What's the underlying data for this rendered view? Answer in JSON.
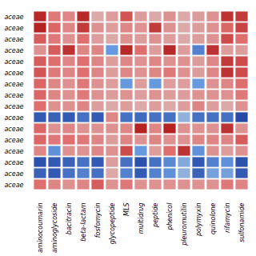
{
  "chart_data": {
    "type": "heatmap",
    "x_categories": [
      "aminocoumarin",
      "aminoglycoside",
      "bacitracin",
      "beta-lactam",
      "fosfomycin",
      "glycopeptide",
      "MLS",
      "multidrug",
      "peptide",
      "phenicol",
      "pleuromutilin",
      "polymyxin",
      "quinolone",
      "rifamycin",
      "sulfonamide"
    ],
    "y_categories": [
      "aceae",
      "aceae",
      "aceae",
      "aceae",
      "aceae",
      "aceae",
      "aceae",
      "aceae",
      "aceae",
      "aceae",
      "aceae",
      "aceae",
      "aceae",
      "aceae",
      "aceae",
      "aceae"
    ],
    "values": [
      [
        0.85,
        0.4,
        0.35,
        0.85,
        0.2,
        0.25,
        0.6,
        0.25,
        0.2,
        0.3,
        0.2,
        0.25,
        0.3,
        0.8,
        0.75
      ],
      [
        0.9,
        0.5,
        0.35,
        0.75,
        0.3,
        0.25,
        0.35,
        0.3,
        0.75,
        0.3,
        0.2,
        0.25,
        0.3,
        0.5,
        0.7
      ],
      [
        0.55,
        0.4,
        0.3,
        0.45,
        0.25,
        0.2,
        0.3,
        0.25,
        0.3,
        0.25,
        0.2,
        0.25,
        0.3,
        0.65,
        0.45
      ],
      [
        0.3,
        0.55,
        0.8,
        0.35,
        0.35,
        -0.4,
        0.85,
        0.45,
        0.25,
        0.85,
        0.25,
        -0.55,
        0.8,
        0.25,
        0.25
      ],
      [
        0.55,
        0.45,
        0.35,
        0.45,
        0.35,
        0.25,
        0.35,
        0.3,
        0.35,
        0.3,
        0.3,
        0.25,
        0.35,
        0.75,
        0.65
      ],
      [
        0.6,
        0.4,
        0.35,
        0.45,
        0.35,
        0.25,
        0.35,
        0.3,
        0.35,
        0.4,
        0.3,
        0.25,
        0.35,
        0.8,
        0.65
      ],
      [
        0.5,
        0.35,
        0.3,
        0.4,
        0.3,
        0.25,
        -0.4,
        0.25,
        -0.4,
        0.25,
        0.25,
        -0.4,
        0.3,
        0.35,
        0.45
      ],
      [
        0.5,
        0.35,
        0.3,
        0.4,
        0.3,
        0.25,
        0.3,
        0.25,
        0.3,
        0.25,
        0.25,
        0.3,
        0.3,
        0.3,
        0.4
      ],
      [
        0.45,
        0.3,
        0.3,
        0.35,
        0.25,
        0.2,
        0.25,
        0.2,
        0.25,
        0.2,
        0.25,
        0.35,
        0.25,
        0.2,
        0.3
      ],
      [
        -0.8,
        -0.75,
        -0.8,
        -0.65,
        -0.8,
        0.35,
        -0.65,
        -0.7,
        -0.65,
        -0.65,
        -0.25,
        -0.65,
        -0.65,
        -0.65,
        -0.9
      ],
      [
        0.5,
        0.3,
        0.35,
        0.3,
        0.3,
        0.3,
        0.35,
        0.9,
        0.35,
        0.9,
        0.3,
        0.3,
        0.3,
        0.8,
        0.3
      ],
      [
        0.5,
        0.4,
        0.45,
        0.4,
        0.35,
        0.25,
        0.35,
        0.3,
        0.35,
        0.3,
        0.3,
        0.35,
        0.35,
        0.35,
        0.55
      ],
      [
        0.35,
        -0.45,
        0.3,
        0.3,
        0.35,
        0.3,
        0.65,
        -0.4,
        0.25,
        0.45,
        0.8,
        -0.45,
        0.3,
        0.25,
        0.3
      ],
      [
        -0.85,
        -0.8,
        -0.75,
        -0.65,
        -0.8,
        0.25,
        -0.65,
        -0.85,
        -0.65,
        -0.5,
        -0.3,
        -0.8,
        -0.55,
        -0.45,
        -0.85
      ],
      [
        -0.75,
        -0.8,
        -0.65,
        -0.55,
        -0.65,
        0.2,
        -0.55,
        -0.8,
        -0.55,
        -0.45,
        -0.25,
        -0.75,
        -0.35,
        -0.35,
        -0.8
      ],
      [
        0.45,
        0.35,
        0.3,
        0.35,
        0.55,
        0.3,
        0.4,
        0.3,
        0.3,
        0.3,
        0.3,
        0.3,
        0.3,
        0.4,
        0.35
      ]
    ],
    "color_range": [
      -1.0,
      1.0
    ],
    "color_positions": [
      0.0,
      0.3,
      0.5,
      0.72,
      1.0
    ],
    "colors": [
      "#1a3a9c",
      "#6699dd",
      "#d8d8d8",
      "#e07070",
      "#aa1111"
    ]
  }
}
